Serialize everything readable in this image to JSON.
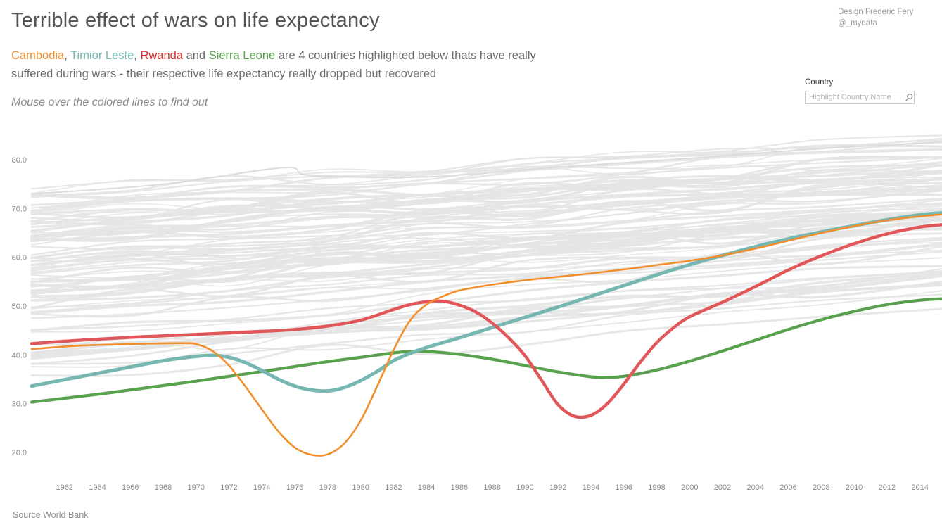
{
  "header": {
    "title": "Terrible effect of wars on life expectancy",
    "credit_line1": "Design Frederic Fery",
    "credit_line2": "@_mydata",
    "note": "Mouse over the colored lines to find out",
    "subtitle": {
      "country1": "Cambodia",
      "sep1": ", ",
      "country2": "Timior Leste",
      "sep2": ", ",
      "country3": "Rwanda",
      "sep3": " and ",
      "country4": "Sierra Leone",
      "rest_line1": " are 4 countries highlighted below thats have really",
      "line2": "suffered during wars - their respective life expectancy really dropped but recovered"
    }
  },
  "search": {
    "label": "Country",
    "placeholder": "Highlight Country Name",
    "icon": "search-icon"
  },
  "source": "Source World Bank",
  "colors": {
    "cambodia": "#f28e2b",
    "timor_leste": "#76b7b2",
    "rwanda_text": "#e02b2b",
    "rwanda_line": "#e15759",
    "sierra_leone": "#59a14f",
    "background_lines": "#e4e4e4",
    "axis_text": "#8a8a8a"
  },
  "chart_data": {
    "type": "line",
    "title": "Terrible effect of wars on life expectancy",
    "xlabel": "",
    "ylabel": "",
    "xlim": [
      1960,
      2015.4
    ],
    "ylim": [
      15,
      87
    ],
    "grid": false,
    "legend": "none (countries named in colored subtitle text)",
    "x_ticks": [
      1962,
      1964,
      1966,
      1968,
      1970,
      1972,
      1974,
      1976,
      1978,
      1980,
      1982,
      1984,
      1986,
      1988,
      1990,
      1992,
      1994,
      1996,
      1998,
      2000,
      2002,
      2004,
      2006,
      2008,
      2010,
      2012,
      2014
    ],
    "y_ticks": [
      80,
      70,
      60,
      50,
      40,
      30,
      20
    ],
    "y_tick_labels": [
      "80.0",
      "70.0",
      "60.0",
      "50.0",
      "40.0",
      "30.0",
      "20.0"
    ],
    "series": [
      {
        "name": "Cambodia",
        "color": "#f28e2b",
        "width": 2.6,
        "z": 4,
        "points": [
          [
            1960,
            41.2
          ],
          [
            1963,
            41.9
          ],
          [
            1966,
            42.2
          ],
          [
            1969,
            42.4
          ],
          [
            1970,
            42.2
          ],
          [
            1971,
            40.8
          ],
          [
            1972,
            37.8
          ],
          [
            1973,
            33.5
          ],
          [
            1974,
            28.8
          ],
          [
            1975,
            24.3
          ],
          [
            1976,
            21.0
          ],
          [
            1977,
            19.5
          ],
          [
            1978,
            19.6
          ],
          [
            1979,
            21.8
          ],
          [
            1980,
            26.5
          ],
          [
            1981,
            33.5
          ],
          [
            1982,
            41.0
          ],
          [
            1983,
            47.0
          ],
          [
            1984,
            50.3
          ],
          [
            1985,
            52.0
          ],
          [
            1986,
            53.2
          ],
          [
            1988,
            54.4
          ],
          [
            1990,
            55.3
          ],
          [
            1992,
            56.0
          ],
          [
            1994,
            56.7
          ],
          [
            1996,
            57.5
          ],
          [
            1998,
            58.4
          ],
          [
            2000,
            59.3
          ],
          [
            2002,
            60.4
          ],
          [
            2004,
            61.8
          ],
          [
            2006,
            63.4
          ],
          [
            2008,
            65.0
          ],
          [
            2010,
            66.4
          ],
          [
            2012,
            67.6
          ],
          [
            2014,
            68.4
          ],
          [
            2015.3,
            68.8
          ]
        ]
      },
      {
        "name": "Timior Leste",
        "color": "#76b7b2",
        "width": 5,
        "z": 2,
        "points": [
          [
            1960,
            33.6
          ],
          [
            1962,
            34.9
          ],
          [
            1964,
            36.2
          ],
          [
            1966,
            37.5
          ],
          [
            1968,
            38.8
          ],
          [
            1970,
            39.7
          ],
          [
            1971,
            39.9
          ],
          [
            1972,
            39.5
          ],
          [
            1973,
            38.4
          ],
          [
            1974,
            36.8
          ],
          [
            1975,
            35.0
          ],
          [
            1976,
            33.6
          ],
          [
            1977,
            32.8
          ],
          [
            1978,
            32.6
          ],
          [
            1979,
            33.3
          ],
          [
            1980,
            34.7
          ],
          [
            1981,
            36.6
          ],
          [
            1982,
            38.8
          ],
          [
            1983,
            40.3
          ],
          [
            1984,
            41.5
          ],
          [
            1986,
            43.5
          ],
          [
            1988,
            45.6
          ],
          [
            1990,
            47.7
          ],
          [
            1992,
            49.8
          ],
          [
            1994,
            52.0
          ],
          [
            1996,
            54.2
          ],
          [
            1998,
            56.4
          ],
          [
            2000,
            58.5
          ],
          [
            2002,
            60.4
          ],
          [
            2004,
            62.2
          ],
          [
            2006,
            63.8
          ],
          [
            2008,
            65.2
          ],
          [
            2010,
            66.5
          ],
          [
            2012,
            67.7
          ],
          [
            2014,
            68.7
          ],
          [
            2015.3,
            69.1
          ]
        ]
      },
      {
        "name": "Rwanda",
        "color": "#e15759",
        "width": 4.4,
        "z": 3,
        "points": [
          [
            1960,
            42.3
          ],
          [
            1962,
            42.8
          ],
          [
            1964,
            43.2
          ],
          [
            1966,
            43.6
          ],
          [
            1968,
            43.9
          ],
          [
            1970,
            44.2
          ],
          [
            1972,
            44.5
          ],
          [
            1974,
            44.8
          ],
          [
            1976,
            45.2
          ],
          [
            1978,
            45.9
          ],
          [
            1980,
            47.1
          ],
          [
            1982,
            49.3
          ],
          [
            1983,
            50.3
          ],
          [
            1984,
            50.9
          ],
          [
            1985,
            51.0
          ],
          [
            1986,
            50.2
          ],
          [
            1987,
            48.8
          ],
          [
            1988,
            46.5
          ],
          [
            1989,
            43.5
          ],
          [
            1990,
            39.8
          ],
          [
            1991,
            34.8
          ],
          [
            1992,
            29.8
          ],
          [
            1993,
            27.4
          ],
          [
            1994,
            27.6
          ],
          [
            1995,
            30.0
          ],
          [
            1996,
            34.0
          ],
          [
            1997,
            38.5
          ],
          [
            1998,
            42.5
          ],
          [
            1999,
            45.5
          ],
          [
            2000,
            47.8
          ],
          [
            2002,
            50.8
          ],
          [
            2004,
            54.0
          ],
          [
            2006,
            57.4
          ],
          [
            2008,
            60.3
          ],
          [
            2010,
            62.8
          ],
          [
            2012,
            64.8
          ],
          [
            2014,
            66.2
          ],
          [
            2015.3,
            66.7
          ]
        ]
      },
      {
        "name": "Sierra Leone",
        "color": "#59a14f",
        "width": 4.2,
        "z": 1,
        "points": [
          [
            1960,
            30.3
          ],
          [
            1962,
            31.1
          ],
          [
            1964,
            31.9
          ],
          [
            1966,
            32.8
          ],
          [
            1968,
            33.7
          ],
          [
            1970,
            34.6
          ],
          [
            1972,
            35.6
          ],
          [
            1974,
            36.6
          ],
          [
            1976,
            37.6
          ],
          [
            1978,
            38.6
          ],
          [
            1980,
            39.5
          ],
          [
            1982,
            40.4
          ],
          [
            1983,
            40.7
          ],
          [
            1984,
            40.7
          ],
          [
            1986,
            40.1
          ],
          [
            1988,
            39.1
          ],
          [
            1990,
            37.8
          ],
          [
            1992,
            36.5
          ],
          [
            1994,
            35.5
          ],
          [
            1995,
            35.4
          ],
          [
            1996,
            35.6
          ],
          [
            1998,
            36.9
          ],
          [
            2000,
            38.7
          ],
          [
            2002,
            40.8
          ],
          [
            2004,
            43.0
          ],
          [
            2006,
            45.2
          ],
          [
            2008,
            47.2
          ],
          [
            2010,
            48.9
          ],
          [
            2012,
            50.3
          ],
          [
            2014,
            51.2
          ],
          [
            2015.3,
            51.5
          ]
        ]
      }
    ],
    "background": {
      "description": "all other world countries shown as light gray context lines",
      "count": 95,
      "seed": 20177,
      "value_range_start": [
        28,
        74
      ],
      "value_range_end": [
        44.5,
        84.5
      ],
      "feature_line_points": [
        [
          1960,
          73
        ],
        [
          1968,
          75
        ],
        [
          1975.3,
          78.4
        ],
        [
          1977,
          76.8
        ],
        [
          1984,
          76.5
        ],
        [
          1992,
          78.5
        ],
        [
          2000,
          80.3
        ],
        [
          2008,
          82.3
        ],
        [
          2015.4,
          83.6
        ]
      ]
    }
  }
}
